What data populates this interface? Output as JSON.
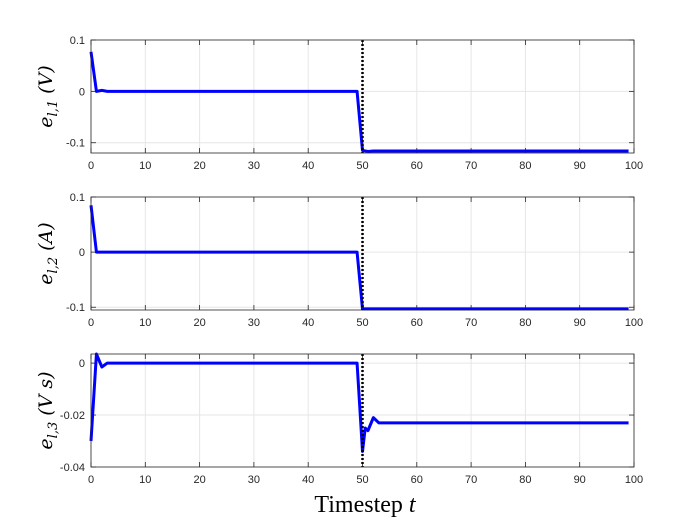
{
  "xlabel": "Timestep t",
  "chart_data": [
    {
      "type": "line",
      "ylabel": "e_{l,1} (V)",
      "ylabel_parts": {
        "sym": "e",
        "sub": "l,1",
        "unit": "(V)"
      },
      "xlim": [
        0,
        100
      ],
      "ylim": [
        -0.12,
        0.1
      ],
      "xticks": [
        0,
        10,
        20,
        30,
        40,
        50,
        60,
        70,
        80,
        90,
        100
      ],
      "yticks": [
        -0.1,
        0,
        0.1
      ],
      "ytick_labels": [
        "-0.1",
        "0",
        "0.1"
      ],
      "grid": true,
      "series": [
        {
          "color": "#0000ff",
          "x": [
            0,
            1,
            2,
            3,
            4,
            49,
            50,
            51,
            52,
            99
          ],
          "y": [
            0.077,
            0.0,
            0.002,
            0.0,
            0.0,
            0.0,
            -0.115,
            -0.117,
            -0.116,
            -0.116
          ]
        }
      ],
      "vline": {
        "x": 50,
        "color": "#000000",
        "style": "dotted"
      }
    },
    {
      "type": "line",
      "ylabel": "e_{l,2} (A)",
      "ylabel_parts": {
        "sym": "e",
        "sub": "l,2",
        "unit": "(A)"
      },
      "xlim": [
        0,
        100
      ],
      "ylim": [
        -0.105,
        0.1
      ],
      "xticks": [
        0,
        10,
        20,
        30,
        40,
        50,
        60,
        70,
        80,
        90,
        100
      ],
      "yticks": [
        -0.1,
        0,
        0.1
      ],
      "ytick_labels": [
        "-0.1",
        "0",
        "0.1"
      ],
      "grid": true,
      "series": [
        {
          "color": "#0000ff",
          "x": [
            0,
            1,
            2,
            49,
            50,
            51,
            99
          ],
          "y": [
            0.085,
            0.0,
            0.0,
            0.0,
            -0.103,
            -0.103,
            -0.103
          ]
        }
      ],
      "vline": {
        "x": 50,
        "color": "#000000",
        "style": "dotted"
      }
    },
    {
      "type": "line",
      "ylabel": "e_{l,3} (Vs)",
      "ylabel_parts": {
        "sym": "e",
        "sub": "l,3",
        "unit": "(V s)"
      },
      "xlim": [
        0,
        100
      ],
      "ylim": [
        -0.04,
        0.0035
      ],
      "xticks": [
        0,
        10,
        20,
        30,
        40,
        50,
        60,
        70,
        80,
        90,
        100
      ],
      "yticks": [
        -0.04,
        -0.02,
        0
      ],
      "ytick_labels": [
        "-0.04",
        "-0.02",
        "0"
      ],
      "grid": true,
      "series": [
        {
          "color": "#0000ff",
          "x": [
            0,
            1,
            2,
            3,
            4,
            49,
            50,
            50.5,
            51,
            52,
            53,
            54,
            99
          ],
          "y": [
            -0.03,
            0.0035,
            -0.0015,
            0.0,
            0.0,
            0.0,
            -0.034,
            -0.025,
            -0.026,
            -0.021,
            -0.023,
            -0.023,
            -0.023
          ]
        }
      ],
      "vline": {
        "x": 50,
        "color": "#000000",
        "style": "dotted"
      }
    }
  ]
}
